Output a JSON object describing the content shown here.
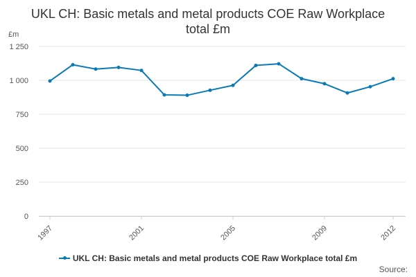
{
  "chart_data": {
    "type": "line",
    "title": "UKL CH: Basic metals and metal products COE Raw Workplace total £m",
    "ylabel": "£m",
    "x": [
      1997,
      1998,
      1999,
      2000,
      2001,
      2002,
      2003,
      2004,
      2005,
      2006,
      2007,
      2008,
      2009,
      2010,
      2011,
      2012
    ],
    "series": [
      {
        "name": "UKL CH: Basic metals and metal products COE Raw Workplace total £m",
        "values": [
          995,
          1115,
          1083,
          1095,
          1073,
          893,
          890,
          927,
          963,
          1110,
          1122,
          1012,
          975,
          907,
          953,
          1012
        ]
      }
    ],
    "x_tick_labels": [
      "1997",
      "2001",
      "2005",
      "2009",
      "2012"
    ],
    "y_tick_labels": [
      "0",
      "250",
      "500",
      "750",
      "1 000",
      "1 250"
    ],
    "y_tick_values": [
      0,
      250,
      500,
      750,
      1000,
      1250
    ],
    "ylim": [
      0,
      1250
    ],
    "grid": true,
    "legend": "bottom",
    "series_color": "#0a7ab5",
    "source_label": "Source:"
  }
}
